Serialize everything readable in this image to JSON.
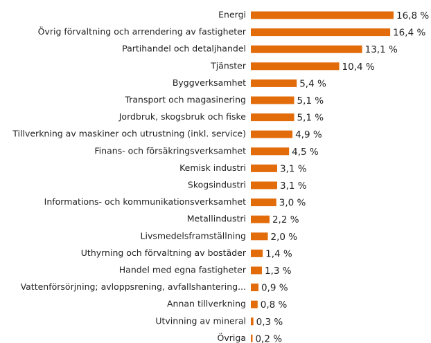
{
  "chart_data": {
    "type": "bar",
    "orientation": "horizontal",
    "color": "#e36c0a",
    "categories": [
      "Energi",
      "Övrig förvaltning och arrendering av fastigheter",
      "Partihandel och detaljhandel",
      "Tjänster",
      "Byggverksamhet",
      "Transport och magasinering",
      "Jordbruk, skogsbruk och fiske",
      "Tillverkning av maskiner och utrustning (inkl. service)",
      "Finans- och försäkringsverksamhet",
      "Kemisk industri",
      "Skogsindustri",
      "Informations- och kommunikationsverksamhet",
      "Metallindustri",
      "Livsmedelsframställning",
      "Uthyrning och förvaltning av bostäder",
      "Handel med egna fastigheter",
      "Vattenförsörjning; avloppsrening, avfallshantering...",
      "Annan tillverkning",
      "Utvinning av mineral",
      "Övriga"
    ],
    "values": [
      16.8,
      16.4,
      13.1,
      10.4,
      5.4,
      5.1,
      5.1,
      4.9,
      4.5,
      3.1,
      3.1,
      3.0,
      2.2,
      2.0,
      1.4,
      1.3,
      0.9,
      0.8,
      0.3,
      0.2
    ],
    "value_labels": [
      "16,8 %",
      "16,4 %",
      "13,1 %",
      "10,4 %",
      "5,4 %",
      "5,1 %",
      "5,1 %",
      "4,9 %",
      "4,5 %",
      "3,1 %",
      "3,1 %",
      "3,0 %",
      "2,2 %",
      "2,0 %",
      "1,4 %",
      "1,3 %",
      "0,9 %",
      "0,8 %",
      "0,3 %",
      "0,2 %"
    ]
  }
}
